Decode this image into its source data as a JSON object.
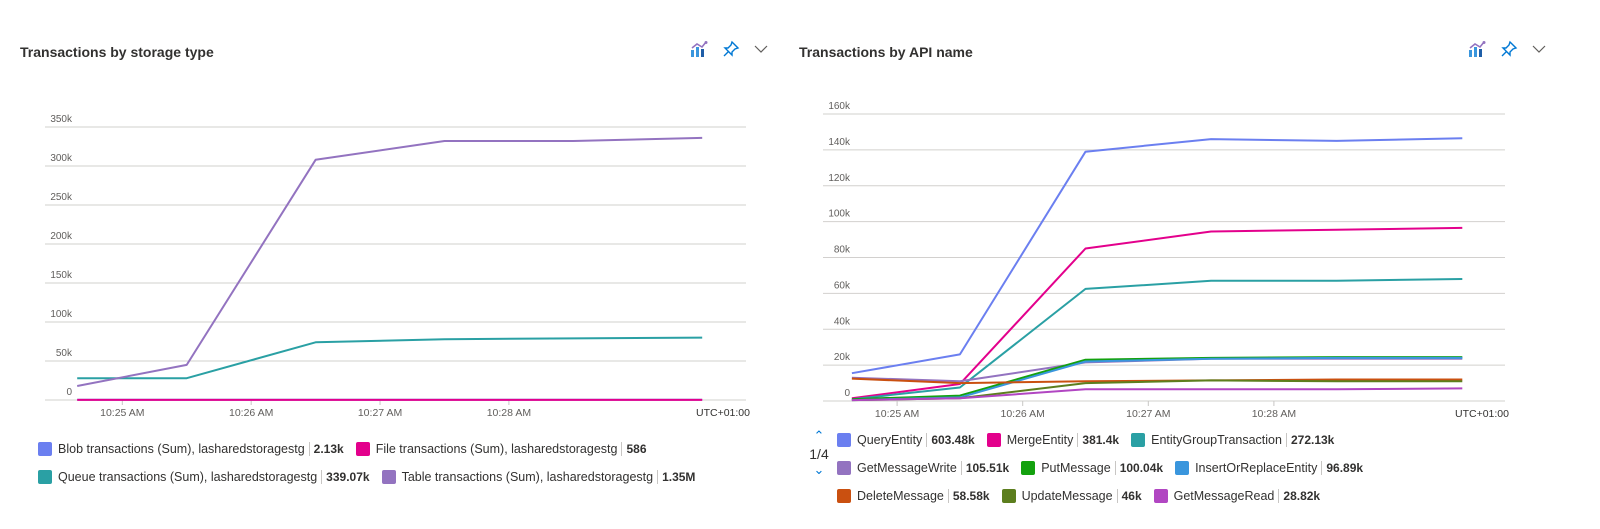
{
  "left_panel": {
    "title": "Transactions by storage type"
  },
  "right_panel": {
    "title": "Transactions by API name",
    "pager": "1/4"
  },
  "icons": [
    "metrics-chart-icon",
    "pin-icon",
    "chevron-down-icon"
  ],
  "chart_data": [
    {
      "type": "line",
      "title": "Transactions by storage type",
      "x_unit": "minutes after 10:25 AM",
      "x": [
        -0.35,
        0.5,
        1.5,
        2.5,
        3.5,
        4.5
      ],
      "xlim": [
        -0.6,
        4.84
      ],
      "xticks": [
        {
          "v": 0,
          "label": "10:25 AM"
        },
        {
          "v": 1,
          "label": "10:26 AM"
        },
        {
          "v": 2,
          "label": "10:27 AM"
        },
        {
          "v": 3,
          "label": "10:28 AM"
        }
      ],
      "timezone_label": "UTC+01:00",
      "ylim": [
        0,
        350000
      ],
      "yticks": [
        {
          "v": 0,
          "label": "0"
        },
        {
          "v": 50000,
          "label": "50k"
        },
        {
          "v": 100000,
          "label": "100k"
        },
        {
          "v": 150000,
          "label": "150k"
        },
        {
          "v": 200000,
          "label": "200k"
        },
        {
          "v": 250000,
          "label": "250k"
        },
        {
          "v": 300000,
          "label": "300k"
        },
        {
          "v": 350000,
          "label": "350k"
        }
      ],
      "grid": true,
      "series": [
        {
          "name": "Blob transactions (Sum), lasharedstoragestg",
          "total": "2.13k",
          "color": "#6b7ff0",
          "values": [
            400,
            350,
            350,
            350,
            350,
            330
          ]
        },
        {
          "name": "File transactions (Sum), lasharedstoragestg",
          "total": "586",
          "color": "#e3008c",
          "values": [
            100,
            100,
            100,
            100,
            100,
            86
          ]
        },
        {
          "name": "Queue transactions (Sum), lasharedstoragestg",
          "total": "339.07k",
          "color": "#2aa0a4",
          "values": [
            28000,
            28000,
            74000,
            78000,
            79000,
            80000
          ]
        },
        {
          "name": "Table transactions (Sum), lasharedstoragestg",
          "total": "1.35M",
          "color": "#9373c0",
          "values": [
            18000,
            45000,
            308000,
            332000,
            332000,
            336000
          ]
        }
      ]
    },
    {
      "type": "line",
      "title": "Transactions by API name",
      "x_unit": "minutes after 10:25 AM",
      "x": [
        -0.36,
        0.5,
        1.5,
        2.5,
        3.5,
        4.5
      ],
      "xlim": [
        -0.59,
        4.84
      ],
      "xticks": [
        {
          "v": 0,
          "label": "10:25 AM"
        },
        {
          "v": 1,
          "label": "10:26 AM"
        },
        {
          "v": 2,
          "label": "10:27 AM"
        },
        {
          "v": 3,
          "label": "10:28 AM"
        }
      ],
      "timezone_label": "UTC+01:00",
      "ylim": [
        0,
        160000
      ],
      "yticks": [
        {
          "v": 0,
          "label": "0"
        },
        {
          "v": 20000,
          "label": "20k"
        },
        {
          "v": 40000,
          "label": "40k"
        },
        {
          "v": 60000,
          "label": "60k"
        },
        {
          "v": 80000,
          "label": "80k"
        },
        {
          "v": 100000,
          "label": "100k"
        },
        {
          "v": 120000,
          "label": "120k"
        },
        {
          "v": 140000,
          "label": "140k"
        },
        {
          "v": 160000,
          "label": "160k"
        }
      ],
      "grid": true,
      "series": [
        {
          "name": "QueryEntity",
          "total": "603.48k",
          "color": "#6b7ff0",
          "values": [
            15500,
            26000,
            139000,
            146000,
            145000,
            146500
          ]
        },
        {
          "name": "MergeEntity",
          "total": "381.4k",
          "color": "#e3008c",
          "values": [
            1500,
            9500,
            85000,
            94500,
            95500,
            96500
          ]
        },
        {
          "name": "EntityGroupTransaction",
          "total": "272.13k",
          "color": "#2aa0a4",
          "values": [
            1000,
            7500,
            62500,
            67000,
            67000,
            68000
          ]
        },
        {
          "name": "GetMessageWrite",
          "total": "105.51k",
          "color": "#9373c0",
          "values": [
            13000,
            11000,
            21500,
            23500,
            23500,
            23500
          ]
        },
        {
          "name": "PutMessage",
          "total": "100.04k",
          "color": "#13a10e",
          "values": [
            1000,
            3000,
            23000,
            24000,
            24500,
            24500
          ]
        },
        {
          "name": "InsertOrReplaceEntity",
          "total": "96.89k",
          "color": "#3a96dd",
          "values": [
            500,
            2000,
            22000,
            23500,
            24000,
            24000
          ]
        },
        {
          "name": "DeleteMessage",
          "total": "58.58k",
          "color": "#ca5010",
          "values": [
            12500,
            10000,
            11000,
            11500,
            12000,
            12000
          ]
        },
        {
          "name": "UpdateMessage",
          "total": "46k",
          "color": "#5c7e1e",
          "values": [
            500,
            1500,
            10000,
            11500,
            11000,
            11000
          ]
        },
        {
          "name": "GetMessageRead",
          "total": "28.82k",
          "color": "#b146c2",
          "values": [
            500,
            1500,
            6500,
            6500,
            6500,
            7000
          ]
        }
      ]
    }
  ]
}
